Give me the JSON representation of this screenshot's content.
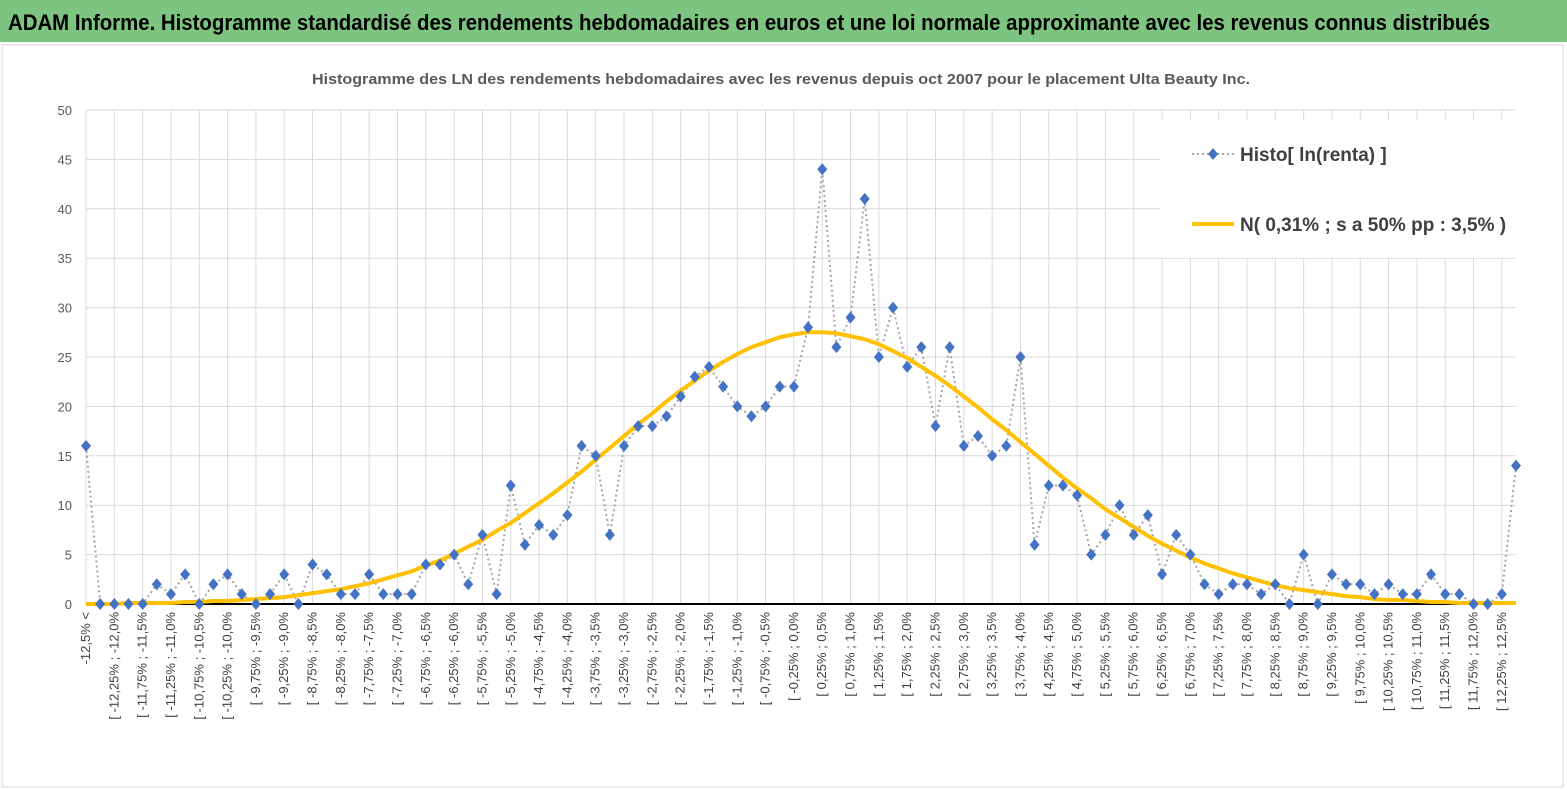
{
  "header": {
    "title": "ADAM Informe. Histogramme standardisé des rendements hebdomadaires en euros et une loi normale approximante avec les revenus connus distribués"
  },
  "chart_data": {
    "type": "line",
    "title": "Histogramme des LN des rendements hebdomadaires avec les revenus depuis oct 2007 pour le placement Ulta Beauty Inc.",
    "categories": [
      "-12,5% <",
      null,
      "[ -12,25% ; -12,0%",
      null,
      "[ -11,75% ; -11,5%",
      null,
      "[ -11,25% ; -11,0%",
      null,
      "[ -10,75% ; -10,5%",
      null,
      "[ -10,25% ; -10,0%",
      null,
      "[ -9,75% ; -9,5%",
      null,
      "[ -9,25% ; -9,0%",
      null,
      "[ -8,75% ; -8,5%",
      null,
      "[ -8,25% ; -8,0%",
      null,
      "[ -7,75% ; -7,5%",
      null,
      "[ -7,25% ; -7,0%",
      null,
      "[ -6,75% ; -6,5%",
      null,
      "[ -6,25% ; -6,0%",
      null,
      "[ -5,75% ; -5,5%",
      null,
      "[ -5,25% ; -5,0%",
      null,
      "[ -4,75% ; -4,5%",
      null,
      "[ -4,25% ; -4,0%",
      null,
      "[ -3,75% ; -3,5%",
      null,
      "[ -3,25% ; -3,0%",
      null,
      "[ -2,75% ; -2,5%",
      null,
      "[ -2,25% ; -2,0%",
      null,
      "[ -1,75% ; -1,5%",
      null,
      "[ -1,25% ; -1,0%",
      null,
      "[ -0,75% ; -0,5%",
      null,
      "[ -0,25% ; 0,0%",
      null,
      "[ 0,25% ; 0,5%",
      null,
      "[ 0,75% ; 1,0%",
      null,
      "[ 1,25% ; 1,5%",
      null,
      "[ 1,75% ; 2,0%",
      null,
      "[ 2,25% ; 2,5%",
      null,
      "[ 2,75% ; 3,0%",
      null,
      "[ 3,25% ; 3,5%",
      null,
      "[ 3,75% ; 4,0%",
      null,
      "[ 4,25% ; 4,5%",
      null,
      "[ 4,75% ; 5,0%",
      null,
      "[ 5,25% ; 5,5%",
      null,
      "[ 5,75% ; 6,0%",
      null,
      "[ 6,25% ; 6,5%",
      null,
      "[ 6,75% ; 7,0%",
      null,
      "[ 7,25% ; 7,5%",
      null,
      "[ 7,75% ; 8,0%",
      null,
      "[ 8,25% ; 8,5%",
      null,
      "[ 8,75% ; 9,0%",
      null,
      "[ 9,25% ; 9,5%",
      null,
      "[ 9,75% ; 10,0%",
      null,
      "[ 10,25% ; 10,5%",
      null,
      "[ 10,75% ; 11,0%",
      null,
      "[ 11,25% ; 11,5%",
      null,
      "[ 11,75% ; 12,0%",
      null,
      "[ 12,25% ; 12,5%",
      null
    ],
    "series": [
      {
        "name": "Histo[ ln(renta) ]",
        "color": "#4472c4",
        "line_color": "#a6a6a6",
        "values": [
          16,
          0,
          0,
          0,
          0,
          2,
          1,
          3,
          0,
          2,
          3,
          1,
          0,
          1,
          3,
          0,
          4,
          3,
          1,
          1,
          3,
          1,
          1,
          1,
          4,
          4,
          5,
          2,
          7,
          1,
          12,
          6,
          8,
          7,
          9,
          16,
          15,
          7,
          16,
          18,
          18,
          19,
          21,
          23,
          24,
          22,
          20,
          19,
          20,
          22,
          22,
          28,
          44,
          26,
          29,
          41,
          25,
          30,
          24,
          26,
          18,
          26,
          16,
          17,
          15,
          16,
          25,
          6,
          12,
          12,
          11,
          5,
          7,
          10,
          7,
          9,
          3,
          7,
          5,
          2,
          1,
          2,
          2,
          1,
          2,
          0,
          5,
          0,
          3,
          2,
          2,
          1,
          2,
          1,
          1,
          3,
          1,
          1,
          0,
          0,
          1,
          14
        ]
      },
      {
        "name": "N( 0,31% ; s a 50% pp : 3,5% )",
        "color": "#ffc000",
        "values": [
          0,
          0,
          0,
          0.1,
          0.1,
          0.1,
          0.1,
          0.2,
          0.2,
          0.3,
          0.3,
          0.4,
          0.5,
          0.6,
          0.7,
          0.9,
          1.1,
          1.3,
          1.5,
          1.8,
          2.1,
          2.5,
          2.9,
          3.3,
          3.9,
          4.4,
          5.1,
          5.8,
          6.5,
          7.4,
          8.2,
          9.2,
          10.2,
          11.2,
          12.3,
          13.4,
          14.6,
          15.8,
          17.0,
          18.2,
          19.3,
          20.5,
          21.6,
          22.6,
          23.6,
          24.5,
          25.3,
          26.0,
          26.5,
          27.0,
          27.3,
          27.5,
          27.5,
          27.4,
          27.1,
          26.8,
          26.3,
          25.6,
          24.9,
          24.0,
          23.1,
          22.1,
          21.0,
          19.9,
          18.7,
          17.6,
          16.4,
          15.2,
          14.0,
          12.8,
          11.7,
          10.7,
          9.6,
          8.7,
          7.8,
          6.9,
          6.1,
          5.4,
          4.7,
          4.1,
          3.6,
          3.1,
          2.7,
          2.3,
          1.9,
          1.6,
          1.4,
          1.2,
          1.0,
          0.8,
          0.7,
          0.5,
          0.4,
          0.4,
          0.3,
          0.2,
          0.2,
          0.1,
          0.1,
          0.1,
          0.1,
          0.1
        ]
      }
    ],
    "ylim": [
      0,
      50
    ],
    "yticks": [
      0,
      5,
      10,
      15,
      20,
      25,
      30,
      35,
      40,
      45,
      50
    ],
    "grid": true,
    "legend": "upper right"
  }
}
